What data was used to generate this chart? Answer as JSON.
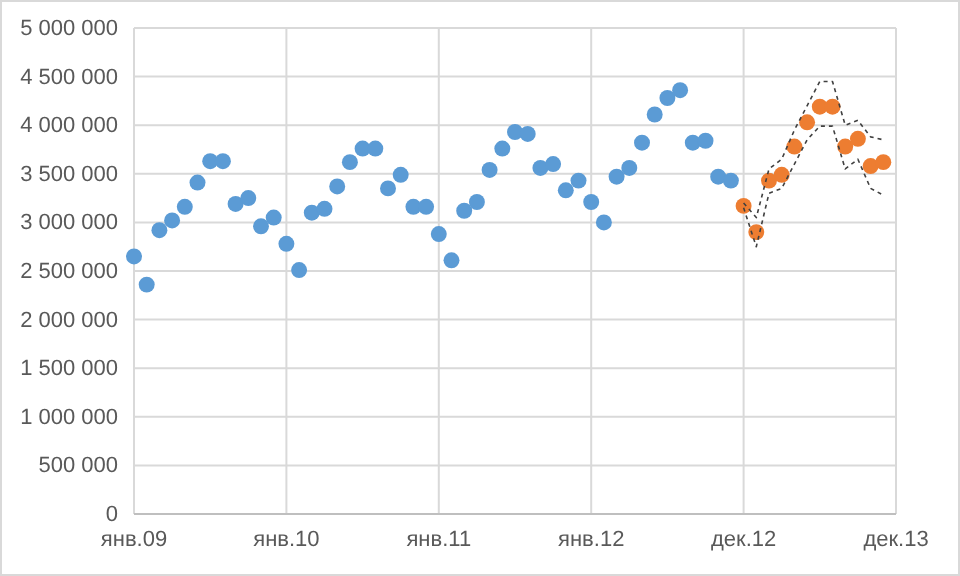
{
  "chart_data": {
    "type": "scatter",
    "marker": "circle",
    "grid": true,
    "categories": [
      "янв.09",
      null,
      null,
      null,
      null,
      null,
      null,
      null,
      null,
      null,
      null,
      null,
      "янв.10",
      null,
      null,
      null,
      null,
      null,
      null,
      null,
      null,
      null,
      null,
      null,
      "янв.11",
      null,
      null,
      null,
      null,
      null,
      null,
      null,
      null,
      null,
      null,
      null,
      "янв.12",
      null,
      null,
      null,
      null,
      null,
      null,
      null,
      null,
      null,
      null,
      null,
      "дек.12",
      null,
      null,
      null,
      null,
      null,
      null,
      null,
      null,
      null,
      null,
      null,
      "дек.13"
    ],
    "ylim": [
      0,
      5000000
    ],
    "yticks": [
      0,
      {
        "value": 500000,
        "label": "500 000"
      },
      {
        "value": 1000000,
        "label": "1 000 000"
      },
      {
        "value": 1500000,
        "label": "1 500 000"
      },
      {
        "value": 2000000,
        "label": "2 000 000"
      },
      {
        "value": 2500000,
        "label": "2 500 000"
      },
      {
        "value": 3000000,
        "label": "3 000 000"
      },
      {
        "value": 3500000,
        "label": "3 500 000"
      },
      {
        "value": 4000000,
        "label": "4 000 000"
      },
      {
        "value": 4500000,
        "label": "4 500 000"
      },
      {
        "value": 5000000,
        "label": "5 000 000"
      }
    ],
    "series": [
      {
        "color": "#5b9bd5",
        "values": [
          2650000,
          2360000,
          2920000,
          3020000,
          3160000,
          3410000,
          3630000,
          3630000,
          3190000,
          3250000,
          2960000,
          3050000,
          2780000,
          2510000,
          3100000,
          3140000,
          3370000,
          3620000,
          3760000,
          3760000,
          3350000,
          3490000,
          3160000,
          3160000,
          2880000,
          2610000,
          3120000,
          3210000,
          3540000,
          3760000,
          3930000,
          3910000,
          3560000,
          3600000,
          3330000,
          3430000,
          3210000,
          3000000,
          3470000,
          3560000,
          3820000,
          4110000,
          4280000,
          4360000,
          3820000,
          3840000,
          3470000,
          3430000,
          null,
          null,
          null,
          null,
          null,
          null,
          null,
          null,
          null,
          null,
          null,
          null,
          null
        ]
      },
      {
        "color": "#ed7d31",
        "values": [
          null,
          null,
          null,
          null,
          null,
          null,
          null,
          null,
          null,
          null,
          null,
          null,
          null,
          null,
          null,
          null,
          null,
          null,
          null,
          null,
          null,
          null,
          null,
          null,
          null,
          null,
          null,
          null,
          null,
          null,
          null,
          null,
          null,
          null,
          null,
          null,
          null,
          null,
          null,
          null,
          null,
          null,
          null,
          null,
          null,
          null,
          null,
          null,
          3170000,
          2900000,
          3430000,
          3490000,
          3780000,
          4030000,
          4190000,
          4190000,
          3780000,
          3860000,
          3580000,
          3620000,
          null
        ]
      },
      {
        "type": "line",
        "marker": "none",
        "line_style": "dashed",
        "color": "#404040",
        "values": [
          null,
          null,
          null,
          null,
          null,
          null,
          null,
          null,
          null,
          null,
          null,
          null,
          null,
          null,
          null,
          null,
          null,
          null,
          null,
          null,
          null,
          null,
          null,
          null,
          null,
          null,
          null,
          null,
          null,
          null,
          null,
          null,
          null,
          null,
          null,
          null,
          null,
          null,
          null,
          null,
          null,
          null,
          null,
          null,
          null,
          null,
          null,
          null,
          3200000,
          3050000,
          3550000,
          3650000,
          3950000,
          4200000,
          4450000,
          4450000,
          4000000,
          4050000,
          3880000,
          3850000,
          null
        ]
      },
      {
        "type": "line",
        "marker": "none",
        "line_style": "dashed",
        "color": "#404040",
        "values": [
          null,
          null,
          null,
          null,
          null,
          null,
          null,
          null,
          null,
          null,
          null,
          null,
          null,
          null,
          null,
          null,
          null,
          null,
          null,
          null,
          null,
          null,
          null,
          null,
          null,
          null,
          null,
          null,
          null,
          null,
          null,
          null,
          null,
          null,
          null,
          null,
          null,
          null,
          null,
          null,
          null,
          null,
          null,
          null,
          null,
          null,
          null,
          null,
          3150000,
          2750000,
          3300000,
          3350000,
          3600000,
          3850000,
          3990000,
          3990000,
          3550000,
          3650000,
          3350000,
          3280000,
          null
        ]
      }
    ]
  }
}
